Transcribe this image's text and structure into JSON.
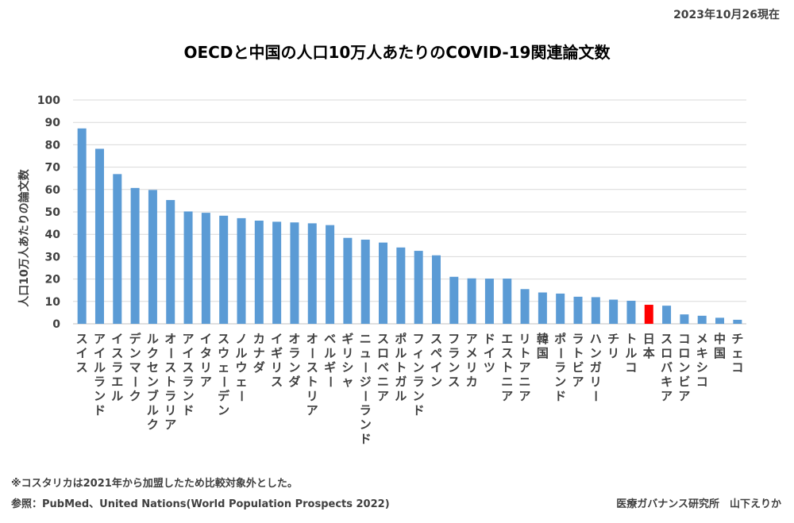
{
  "header": {
    "date": "2023年10月26現在"
  },
  "footer": {
    "note": "※コスタリカは2021年から加盟したため比較対象外とした。",
    "source": "参照：PubMed、United Nations(World Population Prospects 2022)",
    "credit": "医療ガバナンス研究所　山下えりか"
  },
  "colors": {
    "bar": "#5b9bd5",
    "highlight": "#ff0000",
    "grid": "#d9d9d9"
  },
  "chart_data": {
    "type": "bar",
    "title": "OECDと中国の人口10万人あたりのCOVID-19関連論文数",
    "xlabel": "",
    "ylabel": "人口10万人あたりの論文数",
    "ylim": [
      0,
      100
    ],
    "yticks": [
      0,
      10,
      20,
      30,
      40,
      50,
      60,
      70,
      80,
      90,
      100
    ],
    "grid": true,
    "legend": "none",
    "highlight_category": "日本",
    "categories": [
      "スイス",
      "アイルランド",
      "イスラエル",
      "デンマーク",
      "ルクセンブルク",
      "オーストラリア",
      "アイスランド",
      "イタリア",
      "スウェーデン",
      "ノルウェー",
      "カナダ",
      "イギリス",
      "オランダ",
      "オーストリア",
      "ベルギー",
      "ギリシャ",
      "ニュージーランド",
      "スロベニア",
      "ポルトガル",
      "フィンランド",
      "スペイン",
      "フランス",
      "アメリカ",
      "ドイツ",
      "エストニア",
      "リトアニア",
      "韓国",
      "ポーランド",
      "ラトビア",
      "ハンガリー",
      "チリ",
      "トルコ",
      "日本",
      "スロバキア",
      "コロンビア",
      "メキシコ",
      "中国",
      "チェコ"
    ],
    "values": [
      87.3,
      78.2,
      66.9,
      60.7,
      59.8,
      55.3,
      50.2,
      49.6,
      48.3,
      47.2,
      46.1,
      45.6,
      45.3,
      44.9,
      44.1,
      38.4,
      37.6,
      36.3,
      34.1,
      32.6,
      30.6,
      21.0,
      20.3,
      20.2,
      20.2,
      15.5,
      14.0,
      13.5,
      12.1,
      11.9,
      10.8,
      10.3,
      8.5,
      8.1,
      4.2,
      3.6,
      2.7,
      1.8
    ]
  }
}
